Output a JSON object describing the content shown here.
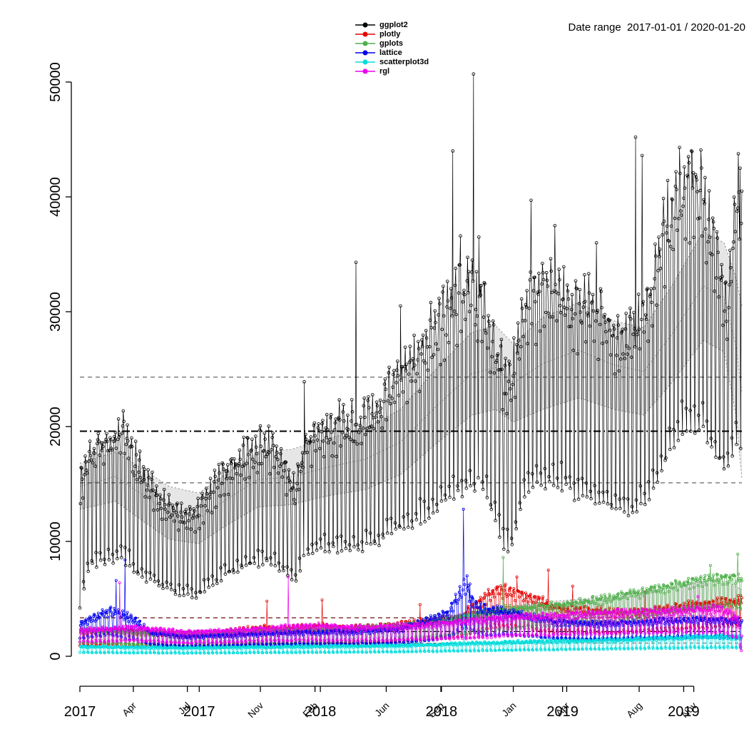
{
  "header": {
    "title": "Date range  2017-01-01 / 2020-01-20"
  },
  "legend": {
    "items": [
      {
        "label": "ggplot2",
        "color": "#000000"
      },
      {
        "label": "plotly",
        "color": "#e60000"
      },
      {
        "label": "gplots",
        "color": "#4daf4a"
      },
      {
        "label": "lattice",
        "color": "#0000ee"
      },
      {
        "label": "scatterplot3d",
        "color": "#00dddd"
      },
      {
        "label": "rgl",
        "color": "#ee00ee"
      }
    ]
  },
  "chart_data": {
    "type": "line",
    "title": "Date range  2017-01-01 / 2020-01-20",
    "xlabel": "",
    "ylabel": "",
    "x_start": "2017-01-01",
    "x_end": "2020-01-20",
    "x_days": 1115,
    "ylim": [
      0,
      50000
    ],
    "y_ticks": [
      0,
      10000,
      20000,
      30000,
      40000,
      50000
    ],
    "x_ticks_years": [
      {
        "day": 0,
        "label": "2017"
      },
      {
        "day": 201,
        "label": "2017"
      },
      {
        "day": 405,
        "label": "2018"
      },
      {
        "day": 609,
        "label": "2018"
      },
      {
        "day": 813,
        "label": "2019"
      },
      {
        "day": 1017,
        "label": "2019"
      }
    ],
    "x_ticks_months": [
      {
        "day": 90,
        "label": "Apr"
      },
      {
        "day": 181,
        "label": "Jul"
      },
      {
        "day": 304,
        "label": "Nov"
      },
      {
        "day": 396,
        "label": "Feb"
      },
      {
        "day": 516,
        "label": "Jun"
      },
      {
        "day": 608,
        "label": "Sep"
      },
      {
        "day": 730,
        "label": "Jan"
      },
      {
        "day": 820,
        "label": "Apr"
      },
      {
        "day": 942,
        "label": "Aug"
      },
      {
        "day": 1034,
        "label": "Nov"
      }
    ],
    "seed": 7,
    "grid": false,
    "legend_position": "top-center",
    "ref_lines": [
      {
        "value": 24300,
        "color": "#444444",
        "dash": [
          6,
          5
        ],
        "width": 1
      },
      {
        "value": 19600,
        "color": "#000000",
        "dash": [
          10,
          4,
          2,
          4
        ],
        "width": 2
      },
      {
        "value": 15100,
        "color": "#444444",
        "dash": [
          6,
          5
        ],
        "width": 1
      },
      {
        "value": 3350,
        "color": "#7a2020",
        "dash": [
          6,
          5
        ],
        "width": 1.4
      },
      {
        "value": 2150,
        "color": "#000000",
        "dash": [
          8,
          3,
          2,
          3
        ],
        "width": 1.2
      },
      {
        "value": 1150,
        "color": "#666666",
        "dash": [
          5,
          4
        ],
        "width": 1
      }
    ],
    "ribbons": [
      {
        "mid": true,
        "anchors": [
          [
            0,
            12800,
            16800
          ],
          [
            60,
            13500,
            17800
          ],
          [
            100,
            12000,
            16500
          ],
          [
            150,
            10200,
            14800
          ],
          [
            200,
            9800,
            14200
          ],
          [
            250,
            11500,
            16000
          ],
          [
            300,
            13000,
            17800
          ],
          [
            355,
            13200,
            18000
          ],
          [
            420,
            14000,
            19000
          ],
          [
            480,
            14500,
            19800
          ],
          [
            540,
            15800,
            21500
          ],
          [
            600,
            18500,
            25000
          ],
          [
            660,
            21000,
            28200
          ],
          [
            700,
            21500,
            28800
          ],
          [
            730,
            20400,
            27200
          ],
          [
            780,
            21500,
            29500
          ],
          [
            840,
            22500,
            30800
          ],
          [
            900,
            21500,
            29200
          ],
          [
            950,
            21000,
            28600
          ],
          [
            1000,
            24000,
            32500
          ],
          [
            1050,
            27500,
            37000
          ],
          [
            1085,
            26500,
            36000
          ],
          [
            1105,
            21000,
            33000
          ],
          [
            1115,
            15500,
            30500
          ]
        ]
      },
      {
        "mid": false,
        "anchors": [
          [
            0,
            1500,
            2500
          ],
          [
            150,
            1300,
            2200
          ],
          [
            300,
            1400,
            2400
          ],
          [
            450,
            1500,
            2600
          ],
          [
            600,
            1800,
            3200
          ],
          [
            700,
            2400,
            4200
          ],
          [
            800,
            2800,
            4800
          ],
          [
            900,
            3000,
            5200
          ],
          [
            1000,
            3600,
            6000
          ],
          [
            1060,
            4000,
            6600
          ],
          [
            1090,
            3800,
            6500
          ],
          [
            1115,
            2800,
            5800
          ]
        ]
      }
    ],
    "series": [
      {
        "name": "ggplot2",
        "color": "#000000",
        "anchors": [
          [
            0,
            4200,
            15500
          ],
          [
            15,
            7500,
            18800
          ],
          [
            45,
            8000,
            19800
          ],
          [
            75,
            8000,
            20500
          ],
          [
            105,
            6500,
            16500
          ],
          [
            135,
            6000,
            14500
          ],
          [
            165,
            5200,
            13000
          ],
          [
            195,
            5000,
            12800
          ],
          [
            225,
            6000,
            15500
          ],
          [
            255,
            7000,
            17500
          ],
          [
            285,
            7500,
            19000
          ],
          [
            315,
            8000,
            19500
          ],
          [
            345,
            7000,
            17500
          ],
          [
            362,
            6200,
            15000
          ],
          [
            380,
            8500,
            19500
          ],
          [
            410,
            9000,
            20500
          ],
          [
            440,
            9000,
            21500
          ],
          [
            470,
            9000,
            21500
          ],
          [
            500,
            9500,
            22500
          ],
          [
            530,
            10500,
            25000
          ],
          [
            560,
            11000,
            27000
          ],
          [
            590,
            12000,
            29500
          ],
          [
            620,
            13000,
            32000
          ],
          [
            650,
            14000,
            34000
          ],
          [
            680,
            14000,
            32000
          ],
          [
            710,
            9500,
            27000
          ],
          [
            725,
            8300,
            25000
          ],
          [
            745,
            13500,
            31500
          ],
          [
            775,
            14500,
            33500
          ],
          [
            805,
            14500,
            34000
          ],
          [
            835,
            13500,
            32000
          ],
          [
            865,
            13000,
            32000
          ],
          [
            895,
            12500,
            30000
          ],
          [
            925,
            12000,
            29000
          ],
          [
            955,
            13000,
            32000
          ],
          [
            985,
            16000,
            39000
          ],
          [
            1015,
            19000,
            43000
          ],
          [
            1045,
            19500,
            43500
          ],
          [
            1075,
            16500,
            36000
          ],
          [
            1090,
            16000,
            31000
          ],
          [
            1105,
            17500,
            41500
          ],
          [
            1115,
            18000,
            42500
          ]
        ],
        "spikes": [
          [
            378,
            23900
          ],
          [
            465,
            34300
          ],
          [
            540,
            30500
          ],
          [
            628,
            44000
          ],
          [
            641,
            36600
          ],
          [
            663,
            50700
          ],
          [
            672,
            36500
          ],
          [
            760,
            39700
          ],
          [
            800,
            37500
          ],
          [
            870,
            36000
          ],
          [
            936,
            45200
          ],
          [
            947,
            43600
          ],
          [
            1010,
            44300
          ],
          [
            1030,
            44000
          ],
          [
            1112,
            42500
          ]
        ]
      },
      {
        "name": "plotly",
        "color": "#e60000",
        "anchors": [
          [
            0,
            900,
            2300
          ],
          [
            60,
            1000,
            2400
          ],
          [
            120,
            900,
            2200
          ],
          [
            180,
            800,
            2000
          ],
          [
            240,
            900,
            2200
          ],
          [
            300,
            1000,
            2600
          ],
          [
            365,
            1000,
            2600
          ],
          [
            400,
            1100,
            2800
          ],
          [
            460,
            1100,
            2600
          ],
          [
            520,
            1200,
            2800
          ],
          [
            580,
            1400,
            3200
          ],
          [
            640,
            1600,
            3600
          ],
          [
            700,
            2500,
            6200
          ],
          [
            740,
            2400,
            5800
          ],
          [
            770,
            2200,
            5200
          ],
          [
            800,
            2000,
            4500
          ],
          [
            860,
            2000,
            4200
          ],
          [
            920,
            2000,
            4000
          ],
          [
            980,
            2200,
            4300
          ],
          [
            1040,
            2400,
            4800
          ],
          [
            1100,
            2500,
            5000
          ],
          [
            1115,
            2500,
            5200
          ]
        ],
        "spikes": [
          [
            315,
            4800
          ],
          [
            408,
            4900
          ],
          [
            573,
            4500
          ],
          [
            736,
            6900
          ],
          [
            789,
            7500
          ],
          [
            830,
            6100
          ],
          [
            952,
            5600
          ],
          [
            1113,
            5300
          ]
        ]
      },
      {
        "name": "gplots",
        "color": "#4daf4a",
        "anchors": [
          [
            0,
            1200,
            2400
          ],
          [
            90,
            1000,
            2200
          ],
          [
            180,
            900,
            2000
          ],
          [
            270,
            1100,
            2300
          ],
          [
            365,
            1100,
            2400
          ],
          [
            450,
            1200,
            2500
          ],
          [
            540,
            1400,
            2800
          ],
          [
            630,
            1800,
            3400
          ],
          [
            700,
            2200,
            4200
          ],
          [
            760,
            2400,
            4400
          ],
          [
            820,
            2600,
            4800
          ],
          [
            880,
            2800,
            5200
          ],
          [
            940,
            3200,
            5800
          ],
          [
            1000,
            3800,
            6500
          ],
          [
            1060,
            4200,
            7000
          ],
          [
            1100,
            4200,
            7200
          ],
          [
            1115,
            4000,
            7000
          ]
        ],
        "spikes": [
          [
            713,
            8600
          ],
          [
            1062,
            7900
          ],
          [
            1108,
            8900
          ]
        ]
      },
      {
        "name": "lattice",
        "color": "#0000ee",
        "anchors": [
          [
            0,
            1500,
            3000
          ],
          [
            50,
            1800,
            4200
          ],
          [
            80,
            1500,
            3800
          ],
          [
            120,
            1000,
            2200
          ],
          [
            180,
            800,
            1800
          ],
          [
            270,
            900,
            2000
          ],
          [
            365,
            1000,
            2200
          ],
          [
            450,
            1000,
            2300
          ],
          [
            540,
            1100,
            2500
          ],
          [
            620,
            1500,
            4000
          ],
          [
            648,
            2500,
            6500
          ],
          [
            670,
            1800,
            4500
          ],
          [
            730,
            1800,
            4000
          ],
          [
            800,
            1500,
            3200
          ],
          [
            880,
            1400,
            3000
          ],
          [
            960,
            1500,
            3200
          ],
          [
            1040,
            1600,
            3400
          ],
          [
            1115,
            1500,
            3200
          ]
        ],
        "spikes": [
          [
            61,
            6600
          ],
          [
            76,
            8400
          ],
          [
            646,
            12800
          ],
          [
            652,
            7000
          ],
          [
            657,
            6300
          ]
        ]
      },
      {
        "name": "scatterplot3d",
        "color": "#00dddd",
        "anchors": [
          [
            0,
            300,
            900
          ],
          [
            180,
            250,
            800
          ],
          [
            365,
            300,
            900
          ],
          [
            540,
            350,
            1000
          ],
          [
            730,
            500,
            1300
          ],
          [
            900,
            600,
            1500
          ],
          [
            1050,
            700,
            1800
          ],
          [
            1115,
            700,
            1800
          ]
        ],
        "spikes": [
          [
            647,
            3600
          ]
        ]
      },
      {
        "name": "rgl",
        "color": "#ee00ee",
        "anchors": [
          [
            0,
            1200,
            2400
          ],
          [
            90,
            1300,
            2600
          ],
          [
            180,
            1100,
            2200
          ],
          [
            270,
            1200,
            2400
          ],
          [
            330,
            1300,
            2600
          ],
          [
            400,
            1300,
            2800
          ],
          [
            470,
            1300,
            2600
          ],
          [
            560,
            1400,
            2800
          ],
          [
            650,
            1500,
            3200
          ],
          [
            730,
            1700,
            3600
          ],
          [
            820,
            1800,
            3800
          ],
          [
            910,
            1900,
            4000
          ],
          [
            1000,
            2000,
            4200
          ],
          [
            1080,
            2000,
            4400
          ],
          [
            1108,
            1500,
            3500
          ],
          [
            1115,
            400,
            1800
          ]
        ],
        "spikes": [
          [
            67,
            6400
          ],
          [
            351,
            6900
          ],
          [
            1041,
            5200
          ],
          [
            1114,
            500
          ]
        ]
      }
    ]
  }
}
